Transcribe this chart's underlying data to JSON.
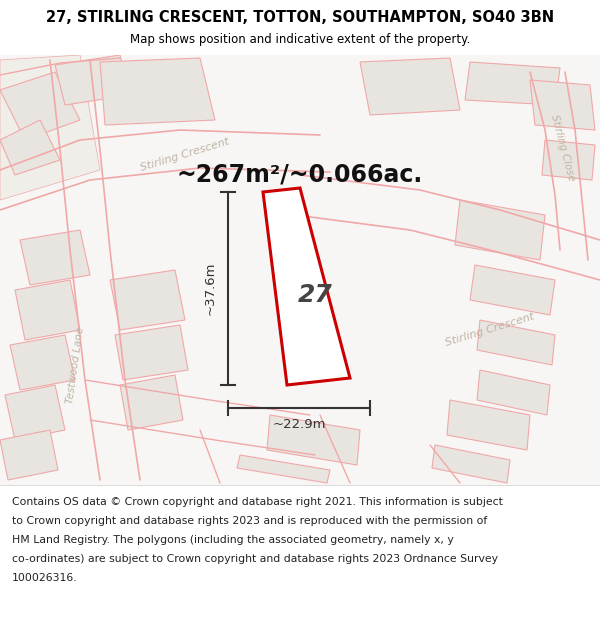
{
  "title": "27, STIRLING CRESCENT, TOTTON, SOUTHAMPTON, SO40 3BN",
  "subtitle": "Map shows position and indicative extent of the property.",
  "area_text": "~267m²/~0.066ac.",
  "label_27": "27",
  "dim_width": "~22.9m",
  "dim_height": "~37.6m",
  "footer": "Contains OS data © Crown copyright and database right 2021. This information is subject to Crown copyright and database rights 2023 and is reproduced with the permission of HM Land Registry. The polygons (including the associated geometry, namely x, y co-ordinates) are subject to Crown copyright and database rights 2023 Ordnance Survey 100026316.",
  "bg_color": "#f7f6f4",
  "map_bg": "#f7f6f4",
  "building_fill": "#e8e5e0",
  "building_stroke": "#c8bfb0",
  "highlight_fill": "#ffffff",
  "highlight_stroke": "#cc0000",
  "street_label_color": "#c0b4a4",
  "road_line_color": "#f0a8a8",
  "title_color": "#000000",
  "footer_color": "#222222",
  "dim_color": "#333333",
  "white": "#ffffff"
}
